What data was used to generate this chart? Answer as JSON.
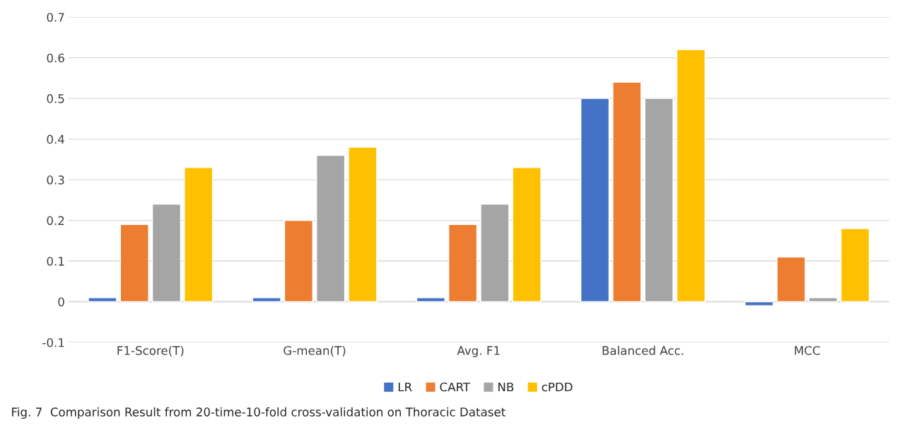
{
  "chart_data": {
    "type": "bar",
    "categories": [
      "F1-Score(T)",
      "G-mean(T)",
      "Avg. F1",
      "Balanced Acc.",
      "MCC"
    ],
    "series": [
      {
        "name": "LR",
        "color": "#4472c4",
        "values": [
          0.01,
          0.01,
          0.01,
          0.5,
          -0.01
        ]
      },
      {
        "name": "CART",
        "color": "#ed7d31",
        "values": [
          0.19,
          0.2,
          0.19,
          0.54,
          0.11
        ]
      },
      {
        "name": "NB",
        "color": "#a5a5a5",
        "values": [
          0.24,
          0.36,
          0.24,
          0.5,
          0.01
        ]
      },
      {
        "name": "cPDD",
        "color": "#ffc000",
        "values": [
          0.33,
          0.38,
          0.33,
          0.62,
          0.18
        ]
      }
    ],
    "ylim": [
      -0.1,
      0.7
    ],
    "yticks": [
      {
        "value": -0.1,
        "label": "-0.1"
      },
      0,
      0.1,
      0.2,
      0.3,
      0.4,
      0.5,
      0.6,
      0.7
    ],
    "grid": "y",
    "legend": "bottom",
    "annotations": [
      "Fig. 7  Comparison Result from 20-time-10-fold cross-validation on Thoracic Dataset"
    ]
  }
}
